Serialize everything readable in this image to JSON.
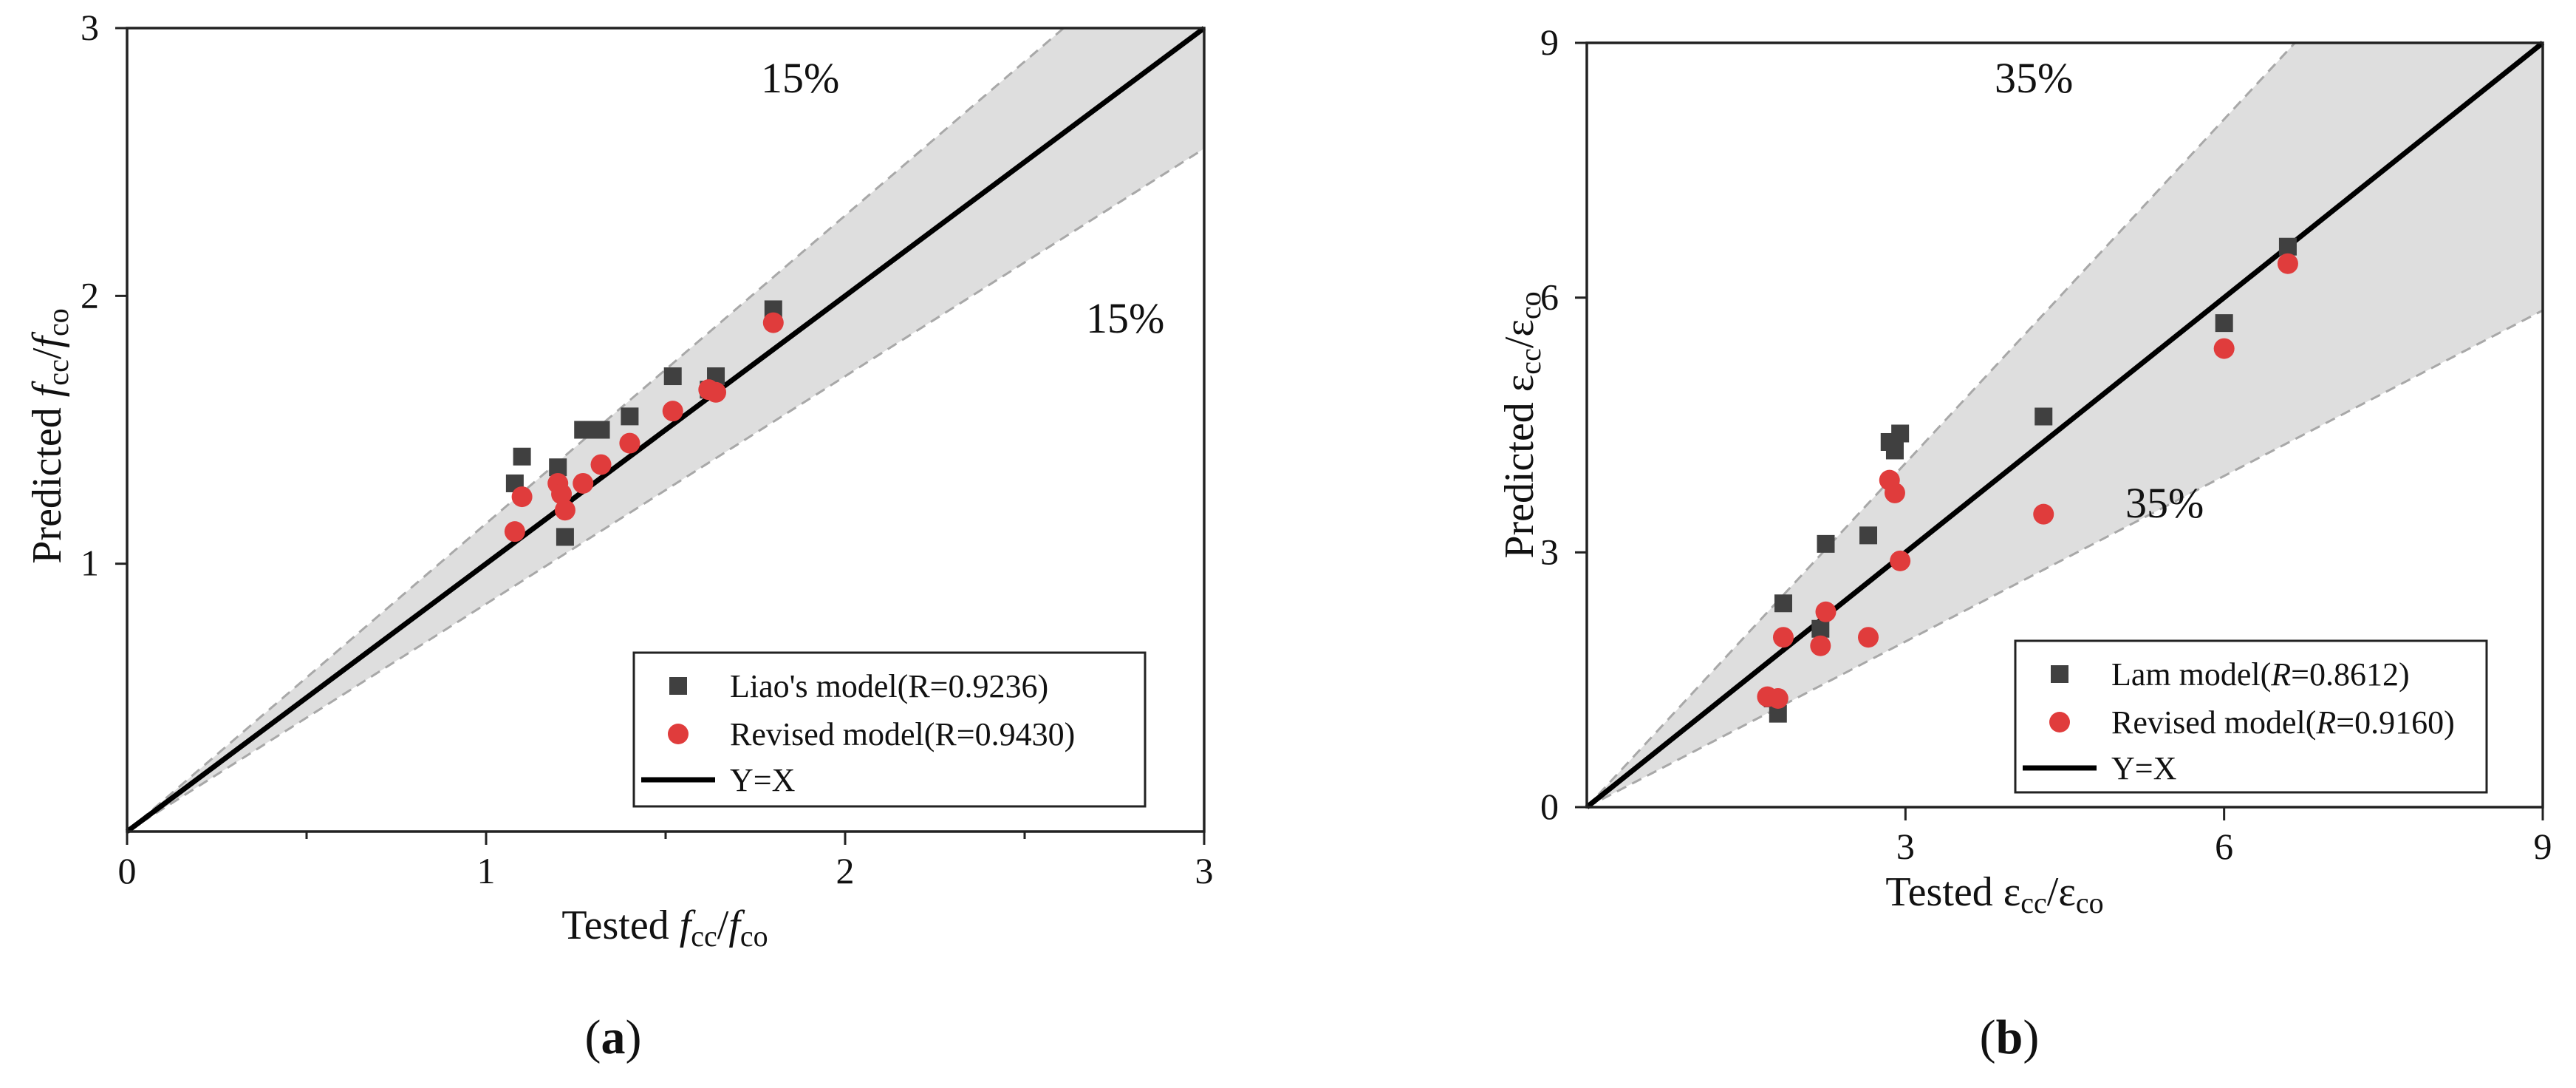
{
  "chart_data": [
    {
      "type": "scatter",
      "panel_label": {
        "open": "(",
        "letter": "a",
        "close": ")"
      },
      "xlabel": {
        "prefix": "Tested ",
        "num_main": "f",
        "num_sub": "cc",
        "sep": "/",
        "den_main": "f",
        "den_sub": "co",
        "italic_main": true
      },
      "ylabel": {
        "prefix": "Predicted ",
        "num_main": "f",
        "num_sub": "cc",
        "sep": "/",
        "den_main": "f",
        "den_sub": "co",
        "italic_main": true
      },
      "xlim": [
        0,
        3
      ],
      "ylim": [
        0,
        3
      ],
      "x_ticks": [
        "0",
        "1",
        "2",
        "3"
      ],
      "y_ticks": [
        "1",
        "2",
        "3"
      ],
      "band_percent": 0.15,
      "band_labels": {
        "upper": "15%",
        "lower": "15%"
      },
      "series": [
        {
          "name": "Liao's model",
          "legend_label": {
            "pre": "Liao's model(",
            "r": "R",
            "post": "=0.9236)",
            "r_italic": false
          },
          "marker": "square",
          "color": "#404040",
          "points": [
            [
              1.08,
              1.3
            ],
            [
              1.1,
              1.4
            ],
            [
              1.2,
              1.36
            ],
            [
              1.22,
              1.1
            ],
            [
              1.27,
              1.5
            ],
            [
              1.3,
              1.5
            ],
            [
              1.32,
              1.5
            ],
            [
              1.4,
              1.55
            ],
            [
              1.52,
              1.7
            ],
            [
              1.62,
              1.65
            ],
            [
              1.64,
              1.7
            ],
            [
              1.8,
              1.95
            ]
          ]
        },
        {
          "name": "Revised model",
          "legend_label": {
            "pre": "Revised model(",
            "r": "R",
            "post": "=0.9430)",
            "r_italic": false
          },
          "marker": "circle",
          "color": "#e03c3c",
          "points": [
            [
              1.08,
              1.12
            ],
            [
              1.1,
              1.25
            ],
            [
              1.2,
              1.3
            ],
            [
              1.21,
              1.26
            ],
            [
              1.22,
              1.2
            ],
            [
              1.27,
              1.3
            ],
            [
              1.32,
              1.37
            ],
            [
              1.4,
              1.45
            ],
            [
              1.52,
              1.57
            ],
            [
              1.62,
              1.65
            ],
            [
              1.64,
              1.64
            ],
            [
              1.8,
              1.9
            ]
          ]
        }
      ],
      "reference_line": {
        "name": "Y=X",
        "legend_label": "Y=X"
      }
    },
    {
      "type": "scatter",
      "panel_label": {
        "open": "(",
        "letter": "b",
        "close": ")"
      },
      "xlabel": {
        "prefix": "Tested ",
        "num_main": "ε",
        "num_sub": "cc",
        "sep": "/",
        "den_main": "ε",
        "den_sub": "co",
        "italic_main": false
      },
      "ylabel": {
        "prefix": "Predicted ",
        "num_main": "ε",
        "num_sub": "cc",
        "sep": "/",
        "den_main": "ε",
        "den_sub": "co",
        "italic_main": false
      },
      "xlim": [
        0,
        9
      ],
      "ylim": [
        0,
        9
      ],
      "x_ticks": [
        "3",
        "6",
        "9"
      ],
      "y_ticks": [
        "0",
        "3",
        "6",
        "9"
      ],
      "band_percent": 0.35,
      "band_labels": {
        "upper": "35%",
        "lower": "35%"
      },
      "series": [
        {
          "name": "Lam model",
          "legend_label": {
            "pre": "Lam model(",
            "r": "R",
            "post": "=0.8612)",
            "r_italic": true
          },
          "marker": "square",
          "color": "#404040",
          "points": [
            [
              1.75,
              1.28
            ],
            [
              1.8,
              1.1
            ],
            [
              1.85,
              2.4
            ],
            [
              2.2,
              2.1
            ],
            [
              2.25,
              3.1
            ],
            [
              2.65,
              3.2
            ],
            [
              2.85,
              4.3
            ],
            [
              2.9,
              4.2
            ],
            [
              2.95,
              4.4
            ],
            [
              4.3,
              4.6
            ],
            [
              6.0,
              5.7
            ],
            [
              6.6,
              6.6
            ]
          ]
        },
        {
          "name": "Revised model",
          "legend_label": {
            "pre": "Revised model(",
            "r": "R",
            "post": "=0.9160)",
            "r_italic": true
          },
          "marker": "circle",
          "color": "#e03c3c",
          "points": [
            [
              1.7,
              1.3
            ],
            [
              1.8,
              1.28
            ],
            [
              1.85,
              2.0
            ],
            [
              2.2,
              1.9
            ],
            [
              2.25,
              2.3
            ],
            [
              2.65,
              2.0
            ],
            [
              2.85,
              3.85
            ],
            [
              2.9,
              3.7
            ],
            [
              2.95,
              2.9
            ],
            [
              4.3,
              3.45
            ],
            [
              6.0,
              5.4
            ],
            [
              6.6,
              6.4
            ]
          ]
        }
      ],
      "reference_line": {
        "name": "Y=X",
        "legend_label": "Y=X"
      }
    }
  ]
}
